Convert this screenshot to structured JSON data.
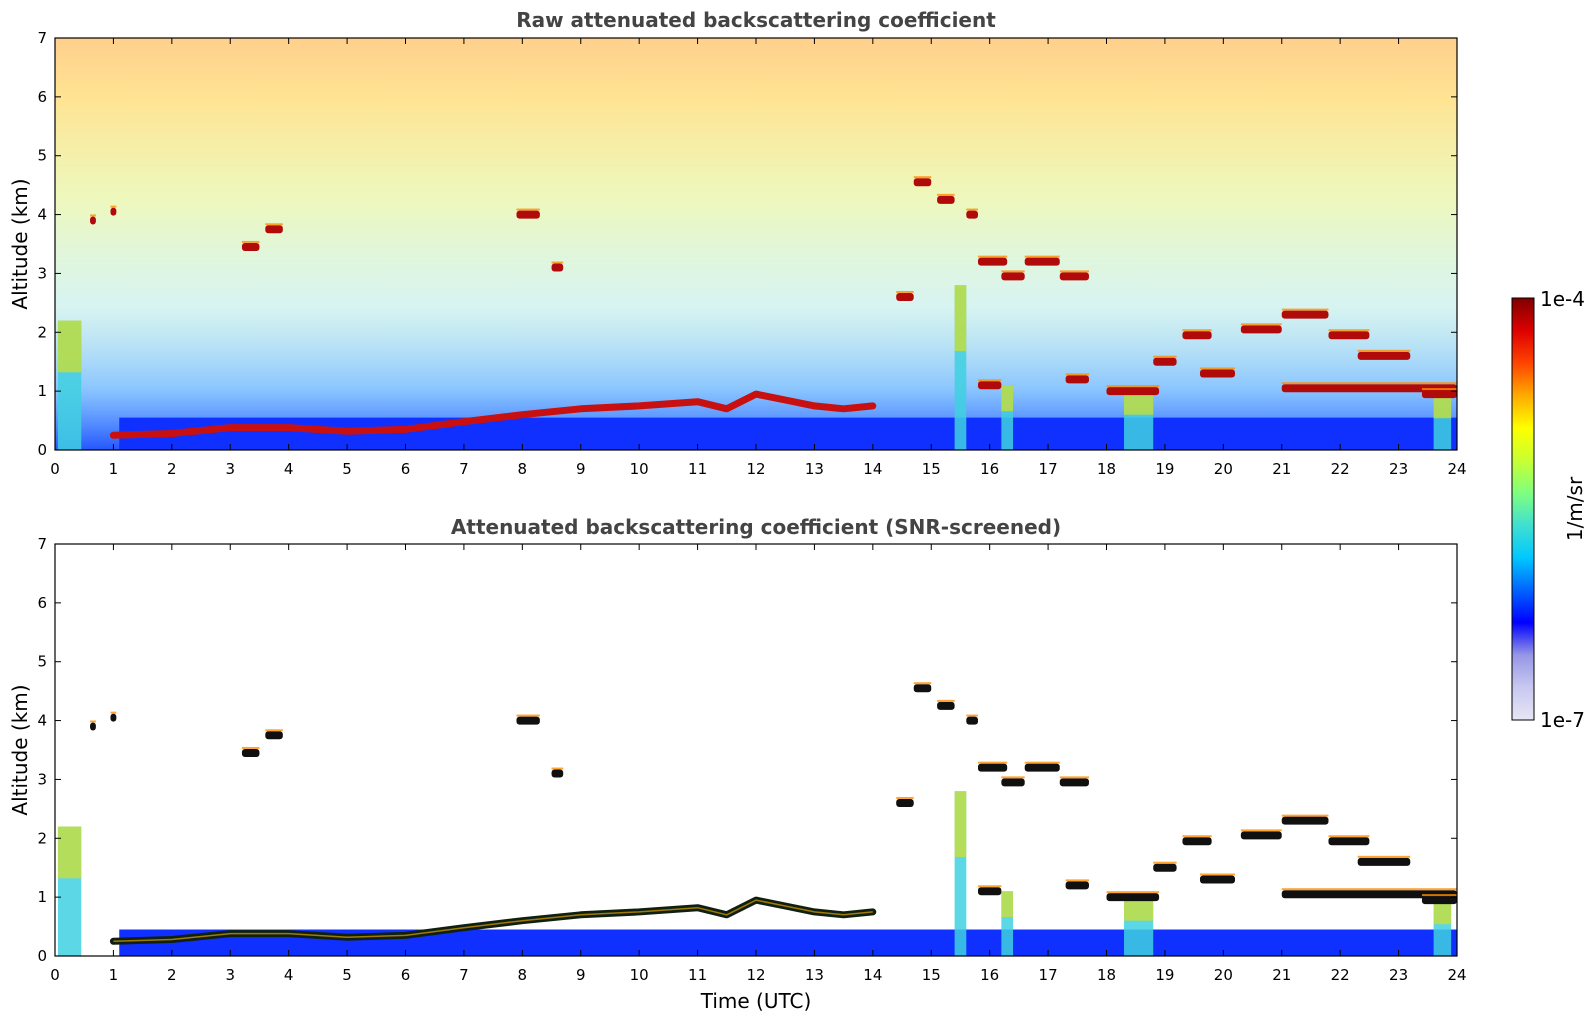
{
  "chart_data": [
    {
      "type": "heatmap",
      "title": "Raw attenuated backscattering coefficient",
      "xlabel": "",
      "ylabel": "Altitude (km)",
      "xlim": [
        0,
        24
      ],
      "ylim": [
        0,
        7
      ],
      "x_ticks": [
        "0",
        "1",
        "2",
        "3",
        "4",
        "5",
        "6",
        "7",
        "8",
        "9",
        "10",
        "11",
        "12",
        "13",
        "14",
        "15",
        "16",
        "17",
        "18",
        "19",
        "20",
        "21",
        "22",
        "23",
        "24"
      ],
      "y_ticks": [
        "0",
        "1",
        "2",
        "3",
        "4",
        "5",
        "6",
        "7"
      ],
      "screened": false,
      "boundary_layer_top": {
        "time": [
          1.0,
          2.0,
          3.0,
          4.0,
          5.0,
          6.0,
          7.0,
          8.0,
          9.0,
          10.0,
          11.0,
          11.5,
          12.0,
          12.5,
          13.0,
          13.5,
          14.0
        ],
        "altitude": [
          0.25,
          0.28,
          0.38,
          0.38,
          0.32,
          0.35,
          0.48,
          0.6,
          0.7,
          0.75,
          0.82,
          0.7,
          0.95,
          0.85,
          0.75,
          0.7,
          0.75
        ]
      },
      "cloud_segments": [
        {
          "t0": 0.6,
          "t1": 0.7,
          "alt": 3.9
        },
        {
          "t0": 0.95,
          "t1": 1.05,
          "alt": 4.05
        },
        {
          "t0": 3.2,
          "t1": 3.5,
          "alt": 3.45
        },
        {
          "t0": 3.6,
          "t1": 3.9,
          "alt": 3.75
        },
        {
          "t0": 7.9,
          "t1": 8.3,
          "alt": 4.0
        },
        {
          "t0": 8.5,
          "t1": 8.7,
          "alt": 3.1
        },
        {
          "t0": 14.4,
          "t1": 14.7,
          "alt": 2.6
        },
        {
          "t0": 14.7,
          "t1": 15.0,
          "alt": 4.55
        },
        {
          "t0": 15.1,
          "t1": 15.4,
          "alt": 4.25
        },
        {
          "t0": 15.6,
          "t1": 15.8,
          "alt": 4.0
        },
        {
          "t0": 15.8,
          "t1": 16.3,
          "alt": 3.2
        },
        {
          "t0": 16.2,
          "t1": 16.6,
          "alt": 2.95
        },
        {
          "t0": 16.6,
          "t1": 17.2,
          "alt": 3.2
        },
        {
          "t0": 17.2,
          "t1": 17.7,
          "alt": 2.95
        },
        {
          "t0": 15.8,
          "t1": 16.2,
          "alt": 1.1
        },
        {
          "t0": 17.3,
          "t1": 17.7,
          "alt": 1.2
        },
        {
          "t0": 18.0,
          "t1": 18.9,
          "alt": 1.0
        },
        {
          "t0": 18.8,
          "t1": 19.2,
          "alt": 1.5
        },
        {
          "t0": 19.3,
          "t1": 19.8,
          "alt": 1.95
        },
        {
          "t0": 19.6,
          "t1": 20.2,
          "alt": 1.3
        },
        {
          "t0": 20.3,
          "t1": 21.0,
          "alt": 2.05
        },
        {
          "t0": 21.0,
          "t1": 21.8,
          "alt": 2.3
        },
        {
          "t0": 21.8,
          "t1": 22.5,
          "alt": 1.95
        },
        {
          "t0": 22.3,
          "t1": 23.2,
          "alt": 1.6
        },
        {
          "t0": 21.0,
          "t1": 24.0,
          "alt": 1.05
        },
        {
          "t0": 23.4,
          "t1": 24.0,
          "alt": 0.95
        }
      ],
      "rain_columns": [
        {
          "t0": 0.05,
          "t1": 0.45,
          "top": 2.2
        },
        {
          "t0": 15.4,
          "t1": 15.6,
          "top": 2.8
        },
        {
          "t0": 16.2,
          "t1": 16.4,
          "top": 1.1
        },
        {
          "t0": 18.3,
          "t1": 18.8,
          "top": 1.0
        },
        {
          "t0": 23.6,
          "t1": 23.9,
          "top": 0.9
        }
      ]
    },
    {
      "type": "heatmap",
      "title": "Attenuated backscattering coefficient (SNR-screened)",
      "xlabel": "Time (UTC)",
      "ylabel": "Altitude (km)",
      "xlim": [
        0,
        24
      ],
      "ylim": [
        0,
        7
      ],
      "x_ticks": [
        "0",
        "1",
        "2",
        "3",
        "4",
        "5",
        "6",
        "7",
        "8",
        "9",
        "10",
        "11",
        "12",
        "13",
        "14",
        "15",
        "16",
        "17",
        "18",
        "19",
        "20",
        "21",
        "22",
        "23",
        "24"
      ],
      "y_ticks": [
        "0",
        "1",
        "2",
        "3",
        "4",
        "5",
        "6",
        "7"
      ],
      "screened": true,
      "boundary_layer_top": {
        "time": [
          1.0,
          2.0,
          3.0,
          4.0,
          5.0,
          6.0,
          7.0,
          8.0,
          9.0,
          10.0,
          11.0,
          11.5,
          12.0,
          12.5,
          13.0,
          13.5,
          14.0
        ],
        "altitude": [
          0.25,
          0.28,
          0.38,
          0.38,
          0.32,
          0.35,
          0.48,
          0.6,
          0.7,
          0.75,
          0.82,
          0.7,
          0.95,
          0.85,
          0.75,
          0.7,
          0.75
        ]
      },
      "cloud_segments": [
        {
          "t0": 0.6,
          "t1": 0.7,
          "alt": 3.9
        },
        {
          "t0": 0.95,
          "t1": 1.05,
          "alt": 4.05
        },
        {
          "t0": 3.2,
          "t1": 3.5,
          "alt": 3.45
        },
        {
          "t0": 3.6,
          "t1": 3.9,
          "alt": 3.75
        },
        {
          "t0": 7.9,
          "t1": 8.3,
          "alt": 4.0
        },
        {
          "t0": 8.5,
          "t1": 8.7,
          "alt": 3.1
        },
        {
          "t0": 14.4,
          "t1": 14.7,
          "alt": 2.6
        },
        {
          "t0": 14.7,
          "t1": 15.0,
          "alt": 4.55
        },
        {
          "t0": 15.1,
          "t1": 15.4,
          "alt": 4.25
        },
        {
          "t0": 15.6,
          "t1": 15.8,
          "alt": 4.0
        },
        {
          "t0": 15.8,
          "t1": 16.3,
          "alt": 3.2
        },
        {
          "t0": 16.2,
          "t1": 16.6,
          "alt": 2.95
        },
        {
          "t0": 16.6,
          "t1": 17.2,
          "alt": 3.2
        },
        {
          "t0": 17.2,
          "t1": 17.7,
          "alt": 2.95
        },
        {
          "t0": 15.8,
          "t1": 16.2,
          "alt": 1.1
        },
        {
          "t0": 17.3,
          "t1": 17.7,
          "alt": 1.2
        },
        {
          "t0": 18.0,
          "t1": 18.9,
          "alt": 1.0
        },
        {
          "t0": 18.8,
          "t1": 19.2,
          "alt": 1.5
        },
        {
          "t0": 19.3,
          "t1": 19.8,
          "alt": 1.95
        },
        {
          "t0": 19.6,
          "t1": 20.2,
          "alt": 1.3
        },
        {
          "t0": 20.3,
          "t1": 21.0,
          "alt": 2.05
        },
        {
          "t0": 21.0,
          "t1": 21.8,
          "alt": 2.3
        },
        {
          "t0": 21.8,
          "t1": 22.5,
          "alt": 1.95
        },
        {
          "t0": 22.3,
          "t1": 23.2,
          "alt": 1.6
        },
        {
          "t0": 21.0,
          "t1": 24.0,
          "alt": 1.05
        },
        {
          "t0": 23.4,
          "t1": 24.0,
          "alt": 0.95
        }
      ],
      "rain_columns": [
        {
          "t0": 0.05,
          "t1": 0.45,
          "top": 2.2
        },
        {
          "t0": 15.4,
          "t1": 15.6,
          "top": 2.8
        },
        {
          "t0": 16.2,
          "t1": 16.4,
          "top": 1.1
        },
        {
          "t0": 18.3,
          "t1": 18.8,
          "top": 1.0
        },
        {
          "t0": 23.6,
          "t1": 23.9,
          "top": 0.9
        }
      ]
    }
  ],
  "colorbar": {
    "label": "1/m/sr",
    "max_label": "1e-4",
    "min_label": "1e-7",
    "colormap": "jet",
    "colors": [
      "#e6e6f5",
      "#c8c8f0",
      "#9696e6",
      "#0000ff",
      "#0064ff",
      "#00c8ff",
      "#40e0d0",
      "#7fff7f",
      "#c8ff32",
      "#ffff00",
      "#ffaa00",
      "#ff4400",
      "#dd0000",
      "#800000"
    ]
  }
}
